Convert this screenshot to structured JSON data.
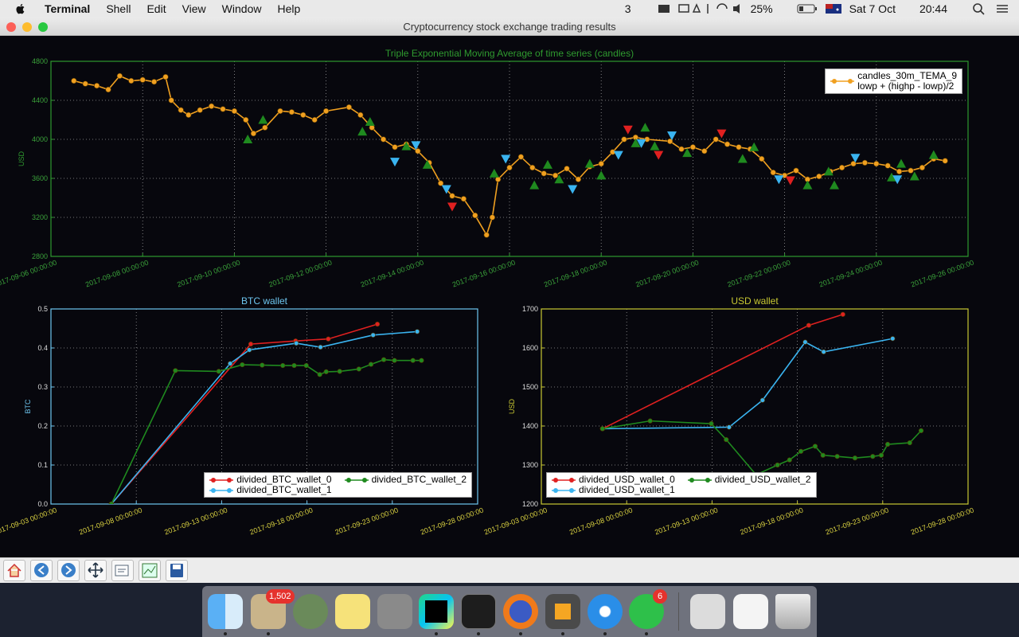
{
  "menu_bar": {
    "app": "Terminal",
    "items": [
      "Shell",
      "Edit",
      "View",
      "Window",
      "Help"
    ],
    "status": {
      "display_count": "3",
      "battery": "25%",
      "date": "Sat 7 Oct",
      "time": "20:44"
    }
  },
  "window": {
    "title": "Cryptocurrency stock exchange trading results"
  },
  "chart_data": [
    {
      "type": "line",
      "title": "Triple Exponential Moving Average of time series (candles)",
      "ylabel": "USD",
      "axis_color": "#2f9a2f",
      "grid": true,
      "legend": "upper right",
      "legend_columns": 1,
      "xlim": [
        "2017-09-06 00:00:00",
        "2017-09-26 00:00:00"
      ],
      "xticks": [
        "2017-09-06 00:00:00",
        "2017-09-08 00:00:00",
        "2017-09-10 00:00:00",
        "2017-09-12 00:00:00",
        "2017-09-14 00:00:00",
        "2017-09-16 00:00:00",
        "2017-09-18 00:00:00",
        "2017-09-20 00:00:00",
        "2017-09-22 00:00:00",
        "2017-09-24 00:00:00",
        "2017-09-26 00:00:00"
      ],
      "ylim": [
        2800,
        4800
      ],
      "yticks": [
        2800,
        3200,
        3600,
        4000,
        4400,
        4800
      ],
      "series": [
        {
          "name": "candles_30m_TEMA_9\nlowp + (highp - lowp)/2",
          "color": "#f0a020",
          "marker": "o",
          "linestyle": "-",
          "x": [
            "2017-09-06 12:00:00",
            "2017-09-06 18:00:00",
            "2017-09-07 00:00:00",
            "2017-09-07 06:00:00",
            "2017-09-07 12:00:00",
            "2017-09-07 18:00:00",
            "2017-09-08 00:00:00",
            "2017-09-08 06:00:00",
            "2017-09-08 12:00:00",
            "2017-09-08 15:00:00",
            "2017-09-08 20:00:00",
            "2017-09-09 00:00:00",
            "2017-09-09 06:00:00",
            "2017-09-09 12:00:00",
            "2017-09-09 18:00:00",
            "2017-09-10 00:00:00",
            "2017-09-10 06:00:00",
            "2017-09-10 10:00:00",
            "2017-09-10 16:00:00",
            "2017-09-11 00:00:00",
            "2017-09-11 06:00:00",
            "2017-09-11 12:00:00",
            "2017-09-11 18:00:00",
            "2017-09-12 00:00:00",
            "2017-09-12 12:00:00",
            "2017-09-12 18:00:00",
            "2017-09-13 00:00:00",
            "2017-09-13 06:00:00",
            "2017-09-13 12:00:00",
            "2017-09-13 18:00:00",
            "2017-09-14 00:00:00",
            "2017-09-14 06:00:00",
            "2017-09-14 12:00:00",
            "2017-09-14 18:00:00",
            "2017-09-15 00:00:00",
            "2017-09-15 06:00:00",
            "2017-09-15 12:00:00",
            "2017-09-15 15:00:00",
            "2017-09-15 18:00:00",
            "2017-09-16 00:00:00",
            "2017-09-16 06:00:00",
            "2017-09-16 12:00:00",
            "2017-09-16 18:00:00",
            "2017-09-17 00:00:00",
            "2017-09-17 06:00:00",
            "2017-09-17 12:00:00",
            "2017-09-17 18:00:00",
            "2017-09-18 00:00:00",
            "2017-09-18 06:00:00",
            "2017-09-18 12:00:00",
            "2017-09-18 18:00:00",
            "2017-09-19 00:00:00",
            "2017-09-19 12:00:00",
            "2017-09-19 18:00:00",
            "2017-09-20 00:00:00",
            "2017-09-20 06:00:00",
            "2017-09-20 12:00:00",
            "2017-09-20 18:00:00",
            "2017-09-21 00:00:00",
            "2017-09-21 06:00:00",
            "2017-09-21 12:00:00",
            "2017-09-21 18:00:00",
            "2017-09-22 00:00:00",
            "2017-09-22 06:00:00",
            "2017-09-22 12:00:00",
            "2017-09-22 18:00:00",
            "2017-09-23 00:00:00",
            "2017-09-23 06:00:00",
            "2017-09-23 12:00:00",
            "2017-09-23 18:00:00",
            "2017-09-24 00:00:00",
            "2017-09-24 06:00:00",
            "2017-09-24 12:00:00",
            "2017-09-24 18:00:00",
            "2017-09-25 00:00:00",
            "2017-09-25 06:00:00",
            "2017-09-25 12:00:00"
          ],
          "values": [
            4600,
            4570,
            4550,
            4510,
            4650,
            4600,
            4610,
            4590,
            4640,
            4400,
            4300,
            4250,
            4300,
            4340,
            4310,
            4290,
            4200,
            4060,
            4120,
            4290,
            4280,
            4250,
            4200,
            4290,
            4330,
            4250,
            4120,
            4000,
            3920,
            3950,
            3880,
            3760,
            3550,
            3420,
            3390,
            3220,
            3020,
            3200,
            3590,
            3710,
            3820,
            3710,
            3650,
            3630,
            3700,
            3590,
            3720,
            3750,
            3870,
            4000,
            4020,
            4000,
            3980,
            3900,
            3920,
            3880,
            4000,
            3950,
            3920,
            3900,
            3800,
            3660,
            3630,
            3680,
            3590,
            3620,
            3670,
            3710,
            3750,
            3760,
            3750,
            3730,
            3670,
            3680,
            3710,
            3800,
            3780
          ]
        },
        {
          "color": "#1f8a1f",
          "marker": "^",
          "linestyle": "none",
          "x": [
            "2017-09-10 07:00:00",
            "2017-09-10 15:00:00",
            "2017-09-12 19:00:00",
            "2017-09-12 23:00:00",
            "2017-09-13 18:00:00",
            "2017-09-14 05:00:00",
            "2017-09-15 16:00:00",
            "2017-09-16 13:00:00",
            "2017-09-16 20:00:00",
            "2017-09-17 02:00:00",
            "2017-09-17 18:00:00",
            "2017-09-18 00:00:00",
            "2017-09-18 18:00:00",
            "2017-09-18 23:00:00",
            "2017-09-19 04:00:00",
            "2017-09-19 21:00:00",
            "2017-09-21 02:00:00",
            "2017-09-21 08:00:00",
            "2017-09-22 12:00:00",
            "2017-09-22 23:00:00",
            "2017-09-23 02:00:00",
            "2017-09-24 08:00:00",
            "2017-09-24 13:00:00",
            "2017-09-24 20:00:00",
            "2017-09-25 06:00:00"
          ],
          "values": [
            4000,
            4200,
            4080,
            4180,
            3930,
            3740,
            3650,
            3530,
            3740,
            3590,
            3750,
            3630,
            3960,
            4120,
            3930,
            3860,
            3800,
            3920,
            3530,
            3670,
            3530,
            3610,
            3750,
            3620,
            3840
          ]
        },
        {
          "color": "#e02020",
          "marker": "v",
          "linestyle": "none",
          "x": [
            "2017-09-14 18:00:00",
            "2017-09-18 14:00:00",
            "2017-09-19 06:00:00",
            "2017-09-20 15:00:00",
            "2017-09-22 03:00:00"
          ],
          "values": [
            3310,
            4100,
            3840,
            4060,
            3580
          ]
        },
        {
          "color": "#3ab4f0",
          "marker": "v",
          "linestyle": "none",
          "x": [
            "2017-09-13 12:00:00",
            "2017-09-13 23:00:00",
            "2017-09-14 15:00:00",
            "2017-09-15 22:00:00",
            "2017-09-17 09:00:00",
            "2017-09-18 09:00:00",
            "2017-09-18 21:00:00",
            "2017-09-19 13:00:00",
            "2017-09-21 21:00:00",
            "2017-09-23 13:00:00",
            "2017-09-24 11:00:00"
          ],
          "values": [
            3770,
            3940,
            3490,
            3800,
            3490,
            3840,
            3960,
            4040,
            3590,
            3810,
            3590
          ]
        }
      ]
    },
    {
      "type": "line",
      "title": "BTC wallet",
      "ylabel": "BTC",
      "axis_color": "#6ec6f0",
      "grid": true,
      "legend": "lower right",
      "legend_columns": 2,
      "xlim": [
        "2017-09-03 00:00:00",
        "2017-09-28 00:00:00"
      ],
      "xticks": [
        "2017-09-03 00:00:00",
        "2017-09-08 00:00:00",
        "2017-09-13 00:00:00",
        "2017-09-18 00:00:00",
        "2017-09-23 00:00:00",
        "2017-09-28 00:00:00"
      ],
      "ylim": [
        0,
        0.5
      ],
      "yticks": [
        {
          "value": 0,
          "label": "0.0"
        },
        0.1,
        0.2,
        0.3,
        0.4,
        0.5
      ],
      "series": [
        {
          "name": "divided_BTC_wallet_0",
          "color": "#e02020",
          "marker": "o",
          "linestyle": "-",
          "x": [
            "2017-09-06 13:00:00",
            "2017-09-14 17:00:00",
            "2017-09-17 08:00:00",
            "2017-09-19 06:00:00",
            "2017-09-22 03:00:00"
          ],
          "values": [
            0,
            0.41,
            0.418,
            0.423,
            0.461
          ]
        },
        {
          "name": "divided_BTC_wallet_1",
          "color": "#3ab4f0",
          "marker": "o",
          "linestyle": "-",
          "x": [
            "2017-09-06 13:00:00",
            "2017-09-13 12:00:00",
            "2017-09-14 15:00:00",
            "2017-09-17 09:00:00",
            "2017-09-18 19:00:00",
            "2017-09-21 21:00:00",
            "2017-09-24 11:00:00"
          ],
          "values": [
            0,
            0.36,
            0.395,
            0.412,
            0.402,
            0.433,
            0.442
          ]
        },
        {
          "name": "divided_BTC_wallet_2",
          "color": "#1f8a1f",
          "marker": "o",
          "linestyle": "-",
          "x": [
            "2017-09-06 13:00:00",
            "2017-09-10 07:00:00",
            "2017-09-12 20:00:00",
            "2017-09-14 05:00:00",
            "2017-09-15 09:00:00",
            "2017-09-16 14:00:00",
            "2017-09-17 06:00:00",
            "2017-09-17 23:00:00",
            "2017-09-18 18:00:00",
            "2017-09-19 03:00:00",
            "2017-09-19 22:00:00",
            "2017-09-21 01:00:00",
            "2017-09-21 18:00:00",
            "2017-09-22 12:00:00",
            "2017-09-23 03:00:00",
            "2017-09-24 05:00:00",
            "2017-09-24 17:00:00"
          ],
          "values": [
            0,
            0.342,
            0.34,
            0.357,
            0.356,
            0.355,
            0.355,
            0.355,
            0.332,
            0.339,
            0.34,
            0.346,
            0.358,
            0.37,
            0.368,
            0.368,
            0.368
          ]
        }
      ]
    },
    {
      "type": "line",
      "title": "USD wallet",
      "ylabel": "USD",
      "axis_color": "#c8c832",
      "grid": true,
      "legend": "lower left",
      "legend_columns": 2,
      "xlim": [
        "2017-09-03 00:00:00",
        "2017-09-28 00:00:00"
      ],
      "xticks": [
        "2017-09-03 00:00:00",
        "2017-09-08 00:00:00",
        "2017-09-13 00:00:00",
        "2017-09-18 00:00:00",
        "2017-09-23 00:00:00",
        "2017-09-28 00:00:00"
      ],
      "ylim": [
        1200,
        1700
      ],
      "yticks": [
        1200,
        1300,
        1400,
        1500,
        1600,
        1700
      ],
      "series": [
        {
          "name": "divided_USD_wallet_0",
          "color": "#e02020",
          "marker": "o",
          "linestyle": "-",
          "x": [
            "2017-09-06 14:00:00",
            "2017-09-18 16:00:00",
            "2017-09-20 16:00:00"
          ],
          "values": [
            1393,
            1658,
            1686
          ]
        },
        {
          "name": "divided_USD_wallet_1",
          "color": "#3ab4f0",
          "marker": "o",
          "linestyle": "-",
          "x": [
            "2017-09-06 14:00:00",
            "2017-09-14 00:00:00",
            "2017-09-15 23:00:00",
            "2017-09-18 11:00:00",
            "2017-09-19 13:00:00",
            "2017-09-23 14:00:00"
          ],
          "values": [
            1393,
            1397,
            1466,
            1615,
            1590,
            1624
          ]
        },
        {
          "name": "divided_USD_wallet_2",
          "color": "#1f8a1f",
          "marker": "o",
          "linestyle": "-",
          "x": [
            "2017-09-06 14:00:00",
            "2017-09-09 09:00:00",
            "2017-09-12 23:00:00",
            "2017-09-13 20:00:00",
            "2017-09-15 14:00:00",
            "2017-09-16 20:00:00",
            "2017-09-17 13:00:00",
            "2017-09-18 05:00:00",
            "2017-09-19 01:00:00",
            "2017-09-19 12:00:00",
            "2017-09-20 08:00:00",
            "2017-09-21 09:00:00",
            "2017-09-22 10:00:00",
            "2017-09-22 22:00:00",
            "2017-09-23 07:00:00",
            "2017-09-24 14:00:00",
            "2017-09-25 06:00:00"
          ],
          "values": [
            1393,
            1413,
            1406,
            1365,
            1275,
            1300,
            1313,
            1335,
            1348,
            1325,
            1322,
            1318,
            1322,
            1325,
            1353,
            1357,
            1388
          ]
        }
      ]
    }
  ],
  "dock": {
    "badges": [
      "1,502",
      "6"
    ]
  }
}
